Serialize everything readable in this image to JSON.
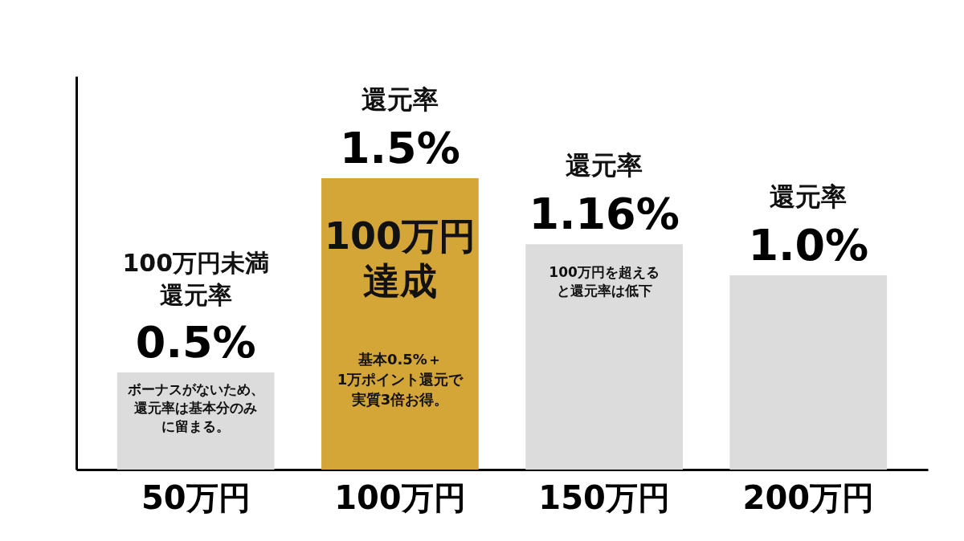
{
  "chart_data": {
    "type": "bar",
    "categories": [
      "50万円",
      "100万円",
      "150万円",
      "200万円"
    ],
    "values": [
      0.5,
      1.5,
      1.16,
      1.0
    ],
    "colors": [
      "#dcdcdc",
      "#d4a537",
      "#dcdcdc",
      "#dcdcdc"
    ],
    "value_labels": [
      "0.5%",
      "1.5%",
      "1.16%",
      "1.0%"
    ],
    "tick_labels": "x",
    "grid": false,
    "annotations": [
      "100万円未満",
      "還元率",
      "ボーナスがないため、還元率は基本分のみに留まる。",
      "還元率",
      "100万円達成",
      "基本0.5%＋1万ポイント還元で実質3倍お得。",
      "還元率",
      "100万円を超えると還元率は低下",
      "還元率"
    ]
  }
}
